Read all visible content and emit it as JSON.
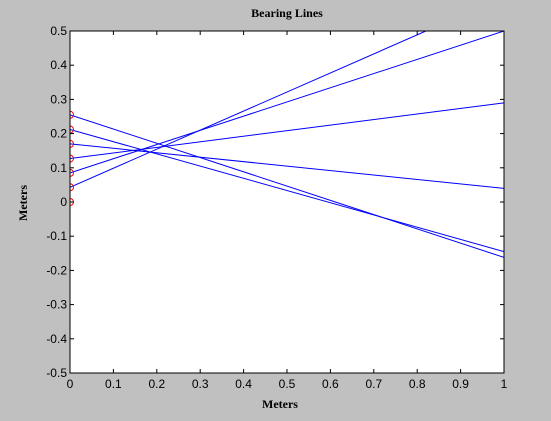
{
  "chart_data": {
    "type": "line",
    "title": "Bearing Lines",
    "xlabel": "Meters",
    "ylabel": "Meters",
    "xlim": [
      0,
      1
    ],
    "ylim": [
      -0.5,
      0.5
    ],
    "xticks": [
      "0",
      "0.1",
      "0.2",
      "0.3",
      "0.4",
      "0.5",
      "0.6",
      "0.7",
      "0.8",
      "0.9",
      "1"
    ],
    "yticks": [
      "-0.5",
      "-0.4",
      "-0.3",
      "-0.2",
      "-0.1",
      "0",
      "0.1",
      "0.2",
      "0.3",
      "0.4",
      "0.5"
    ],
    "grid": false,
    "line_color": "#0000ff",
    "marker_color": "#ff0000",
    "background": "#c0c0c0",
    "plot_background": "#ffffff",
    "sensors": [
      {
        "x": 0,
        "y": 0.0
      },
      {
        "x": 0,
        "y": 0.043
      },
      {
        "x": 0,
        "y": 0.085
      },
      {
        "x": 0,
        "y": 0.127
      },
      {
        "x": 0,
        "y": 0.17
      },
      {
        "x": 0,
        "y": 0.212
      },
      {
        "x": 0,
        "y": 0.255
      }
    ],
    "lines": [
      {
        "x": [
          0,
          0.82
        ],
        "y": [
          0.043,
          0.5
        ]
      },
      {
        "x": [
          0,
          1.0
        ],
        "y": [
          0.085,
          0.5
        ]
      },
      {
        "x": [
          0,
          1.0
        ],
        "y": [
          0.127,
          0.29
        ]
      },
      {
        "x": [
          0,
          1.0
        ],
        "y": [
          0.17,
          0.04
        ]
      },
      {
        "x": [
          0,
          1.0
        ],
        "y": [
          0.212,
          -0.145
        ]
      },
      {
        "x": [
          0,
          1.0
        ],
        "y": [
          0.255,
          -0.162
        ]
      }
    ]
  }
}
